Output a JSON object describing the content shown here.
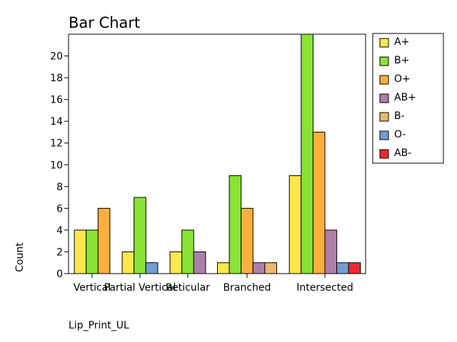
{
  "chart_data": {
    "type": "bar",
    "title": "Bar Chart",
    "xlabel": "Lip_Print_UL",
    "ylabel": "Count",
    "categories": [
      "Vertical",
      "Partial Vertical",
      "Reticular",
      "Branched",
      "Intersected"
    ],
    "ylim": [
      0,
      22
    ],
    "yticks": [
      0,
      2,
      4,
      6,
      8,
      10,
      12,
      14,
      16,
      18,
      20
    ],
    "grid": false,
    "legend_position": "right",
    "series": [
      {
        "name": "A+",
        "color": "#fde84b",
        "values": [
          4,
          2,
          2,
          1,
          9
        ]
      },
      {
        "name": "B+",
        "color": "#8ae234",
        "values": [
          4,
          7,
          4,
          9,
          22
        ]
      },
      {
        "name": "O+",
        "color": "#fcaf3e",
        "values": [
          6,
          0,
          0,
          6,
          13
        ]
      },
      {
        "name": "AB+",
        "color": "#ad7fa8",
        "values": [
          0,
          0,
          2,
          1,
          4
        ]
      },
      {
        "name": "B-",
        "color": "#e9b96e",
        "values": [
          0,
          0,
          0,
          1,
          0
        ]
      },
      {
        "name": "O-",
        "color": "#729fcf",
        "values": [
          0,
          1,
          0,
          0,
          1
        ]
      },
      {
        "name": "AB-",
        "color": "#ef2929",
        "values": [
          0,
          0,
          0,
          0,
          1
        ]
      }
    ]
  }
}
